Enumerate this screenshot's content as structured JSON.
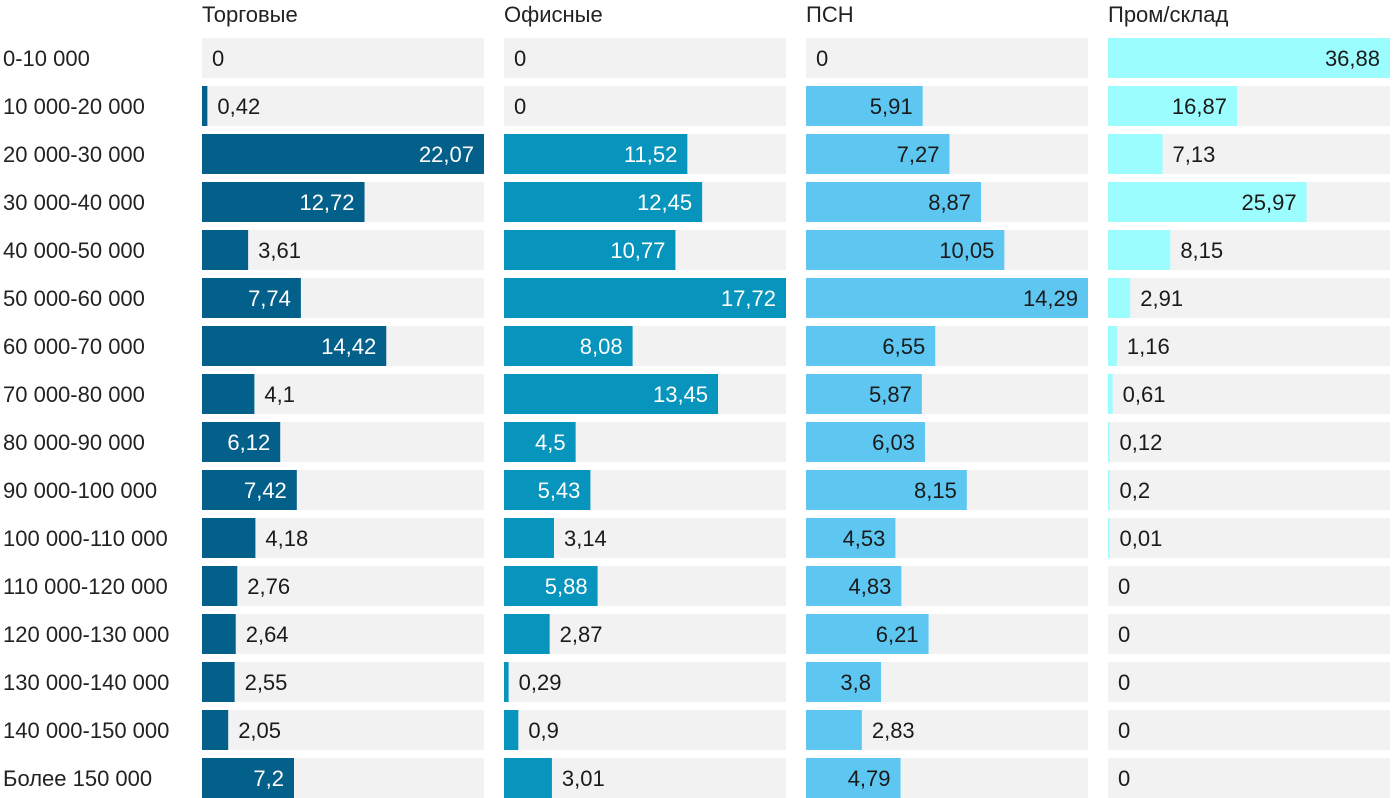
{
  "chart_data": {
    "type": "bar",
    "orientation": "horizontal",
    "layout": "small-multiples",
    "categories": [
      "0-10 000",
      "10 000-20 000",
      "20 000-30 000",
      "30 000-40 000",
      "40 000-50 000",
      "50 000-60 000",
      "60 000-70 000",
      "70 000-80 000",
      "80 000-90 000",
      "90 000-100 000",
      "100 000-110 000",
      "110 000-120 000",
      "120 000-130 000",
      "130 000-140 000",
      "140 000-150 000",
      "Более 150 000"
    ],
    "series": [
      {
        "name": "Торговые",
        "color": "#03608a",
        "label_inside_color": "#ffffff",
        "values": [
          0,
          0.42,
          22.07,
          12.72,
          3.61,
          7.74,
          14.42,
          4.1,
          6.12,
          7.42,
          4.18,
          2.76,
          2.64,
          2.55,
          2.05,
          7.2
        ],
        "labels": [
          "0",
          "0,42",
          "22,07",
          "12,72",
          "3,61",
          "7,74",
          "14,42",
          "4,1",
          "6,12",
          "7,42",
          "4,18",
          "2,76",
          "2,64",
          "2,55",
          "2,05",
          "7,2"
        ]
      },
      {
        "name": "Офисные",
        "color": "#0794bd",
        "label_inside_color": "#ffffff",
        "values": [
          0,
          0,
          11.52,
          12.45,
          10.77,
          17.72,
          8.08,
          13.45,
          4.5,
          5.43,
          3.14,
          5.88,
          2.87,
          0.29,
          0.9,
          3.01
        ],
        "labels": [
          "0",
          "0",
          "11,52",
          "12,45",
          "10,77",
          "17,72",
          "8,08",
          "13,45",
          "4,5",
          "5,43",
          "3,14",
          "5,88",
          "2,87",
          "0,29",
          "0,9",
          "3,01"
        ]
      },
      {
        "name": "ПСН",
        "color": "#5dc7f2",
        "label_inside_color": "#1a1a1a",
        "values": [
          0,
          5.91,
          7.27,
          8.87,
          10.05,
          14.29,
          6.55,
          5.87,
          6.03,
          8.15,
          4.53,
          4.83,
          6.21,
          3.8,
          2.83,
          4.79
        ],
        "labels": [
          "0",
          "5,91",
          "7,27",
          "8,87",
          "10,05",
          "14,29",
          "6,55",
          "5,87",
          "6,03",
          "8,15",
          "4,53",
          "4,83",
          "6,21",
          "3,8",
          "2,83",
          "4,79"
        ]
      },
      {
        "name": "Пром/склад",
        "color": "#9bfdfd",
        "label_inside_color": "#1a1a1a",
        "values": [
          36.88,
          16.87,
          7.13,
          25.97,
          8.15,
          2.91,
          1.16,
          0.61,
          0.12,
          0.2,
          0.01,
          0,
          0,
          0,
          0,
          0
        ],
        "labels": [
          "36,88",
          "16,87",
          "7,13",
          "25,97",
          "8,15",
          "2,91",
          "1,16",
          "0,61",
          "0,12",
          "0,2",
          "0,01",
          "0",
          "0",
          "0",
          "0",
          "0"
        ]
      }
    ],
    "track_color": "#f2f2f2",
    "label_outside_color": "#1a1a1a"
  }
}
